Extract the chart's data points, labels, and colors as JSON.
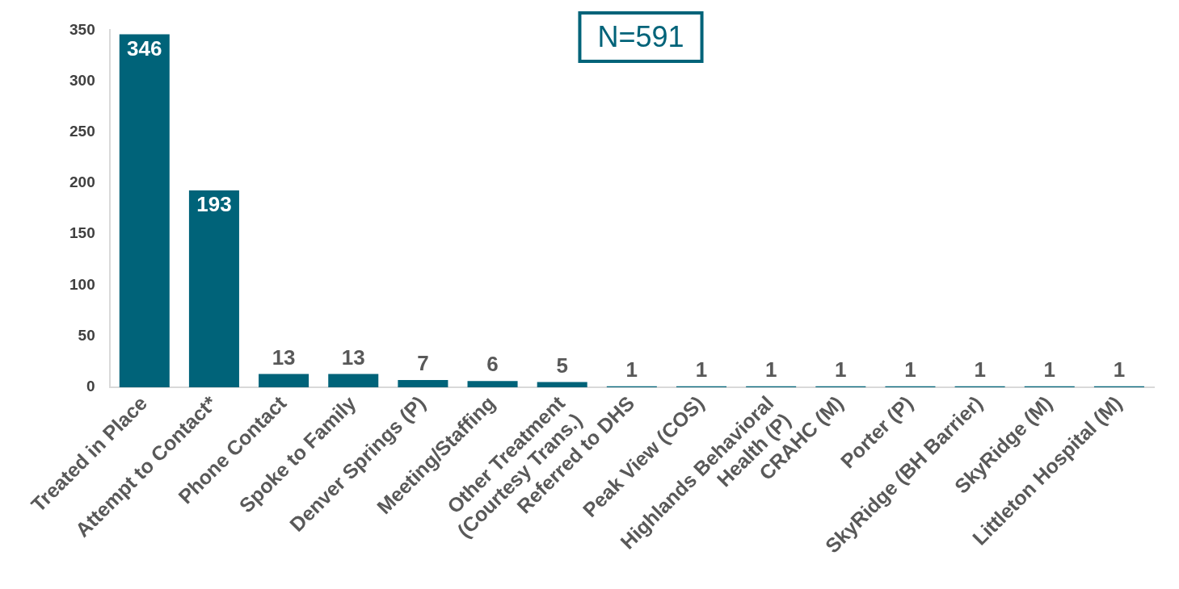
{
  "chart_data": {
    "type": "bar",
    "categories": [
      "Treated in Place",
      "Attempt to Contact*",
      "Phone Contact",
      "Spoke to Family",
      "Denver Springs (P)",
      "Meeting/Staffing",
      "Other Treatment\n(Courtesy Trans.)",
      "Referred to DHS",
      "Peak View (COS)",
      "Highlands Behavioral\nHealth (P)",
      "CRAHC (M)",
      "Porter (P)",
      "SkyRidge (BH Barrier)",
      "SkyRidge (M)",
      "Littleton Hospital (M)"
    ],
    "values": [
      346,
      193,
      13,
      13,
      7,
      6,
      5,
      1,
      1,
      1,
      1,
      1,
      1,
      1,
      1
    ],
    "color": "#006379",
    "ylim": [
      0,
      350
    ],
    "yticks": [
      0,
      50,
      100,
      150,
      200,
      250,
      300,
      350
    ],
    "grid": false,
    "data_labels": true,
    "annotations": [
      "N=591"
    ]
  }
}
